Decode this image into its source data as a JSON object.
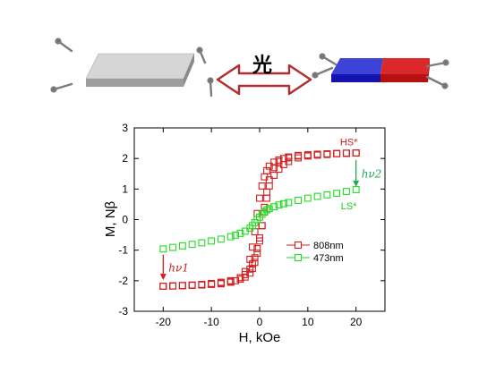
{
  "illustration": {
    "arrow_label": "光",
    "left_object": "gray-bar-unmagnetized",
    "right_object": "bar-magnet-magnetized",
    "colors": {
      "bar_gray": "#bdbdbd",
      "magnet_blue": "#1010c8",
      "magnet_red": "#d01010",
      "arrow_red": "#b03030",
      "nail": "#8a8a8a"
    }
  },
  "chart_data": {
    "type": "scatter",
    "xlabel": "H, kOe",
    "ylabel": "M, Nβ",
    "xlim": [
      -26,
      26
    ],
    "ylim": [
      -3,
      3
    ],
    "xticks": [
      -20,
      -10,
      0,
      10,
      20
    ],
    "yticks": [
      -3,
      -2,
      -1,
      0,
      1,
      2,
      3
    ],
    "grid": false,
    "legend_position": "inside-lower-right",
    "series": [
      {
        "name": "808nm",
        "color": "#d11f1f",
        "marker": "open-square",
        "shape": "hysteresis-loop",
        "x": [
          20,
          18,
          16,
          14,
          12,
          10,
          8,
          6,
          5,
          4,
          3,
          2,
          1.5,
          1,
          0.5,
          0,
          -0.5,
          -1,
          -1.5,
          -2,
          -3,
          -4,
          -6,
          -8,
          -10,
          -12,
          -14,
          -16,
          -18,
          -20
        ],
        "y_descending": [
          2.18,
          2.17,
          2.16,
          2.15,
          2.14,
          2.12,
          2.1,
          2.05,
          2.0,
          1.95,
          1.88,
          1.75,
          1.6,
          1.4,
          1.1,
          0.7,
          0.2,
          -0.4,
          -0.9,
          -1.3,
          -1.7,
          -1.9,
          -2.02,
          -2.08,
          -2.11,
          -2.13,
          -2.15,
          -2.16,
          -2.17,
          -2.18
        ],
        "y_ascending": [
          2.18,
          2.17,
          2.16,
          2.13,
          2.11,
          2.08,
          2.02,
          1.9,
          1.8,
          1.65,
          1.45,
          1.1,
          0.7,
          0.25,
          -0.2,
          -0.6,
          -0.95,
          -1.25,
          -1.45,
          -1.62,
          -1.8,
          -1.9,
          -2.0,
          -2.05,
          -2.09,
          -2.12,
          -2.14,
          -2.16,
          -2.17,
          -2.18
        ]
      },
      {
        "name": "473nm",
        "color": "#22dd22",
        "marker": "open-square",
        "x": [
          -20,
          -18,
          -16,
          -14,
          -12,
          -10,
          -8,
          -6,
          -5,
          -4,
          -3,
          -2,
          -1.5,
          -1,
          -0.5,
          0,
          0.5,
          1,
          1.5,
          2,
          3,
          4,
          5,
          6,
          8,
          10,
          12,
          14,
          16,
          18,
          20
        ],
        "y": [
          -0.96,
          -0.91,
          -0.86,
          -0.81,
          -0.76,
          -0.7,
          -0.64,
          -0.56,
          -0.51,
          -0.45,
          -0.38,
          -0.28,
          -0.2,
          -0.1,
          0.0,
          0.08,
          0.18,
          0.26,
          0.32,
          0.36,
          0.42,
          0.48,
          0.52,
          0.56,
          0.63,
          0.7,
          0.76,
          0.81,
          0.86,
          0.92,
          0.98
        ]
      }
    ],
    "annotations": [
      {
        "text": "HS*",
        "x": 18.5,
        "y": 2.55,
        "color": "#d11f1f"
      },
      {
        "text": "LS*",
        "x": 18.5,
        "y": 0.45,
        "color": "#22cc22"
      },
      {
        "text": "hν1",
        "x": -20,
        "y": -1.6,
        "color": "#d11f1f",
        "arrow_from": -1.15,
        "arrow_to": -1.95
      },
      {
        "text": "hν2",
        "x": 20,
        "y": 1.55,
        "color": "#22aa55",
        "arrow_from": 1.95,
        "arrow_to": 1.1
      }
    ]
  }
}
